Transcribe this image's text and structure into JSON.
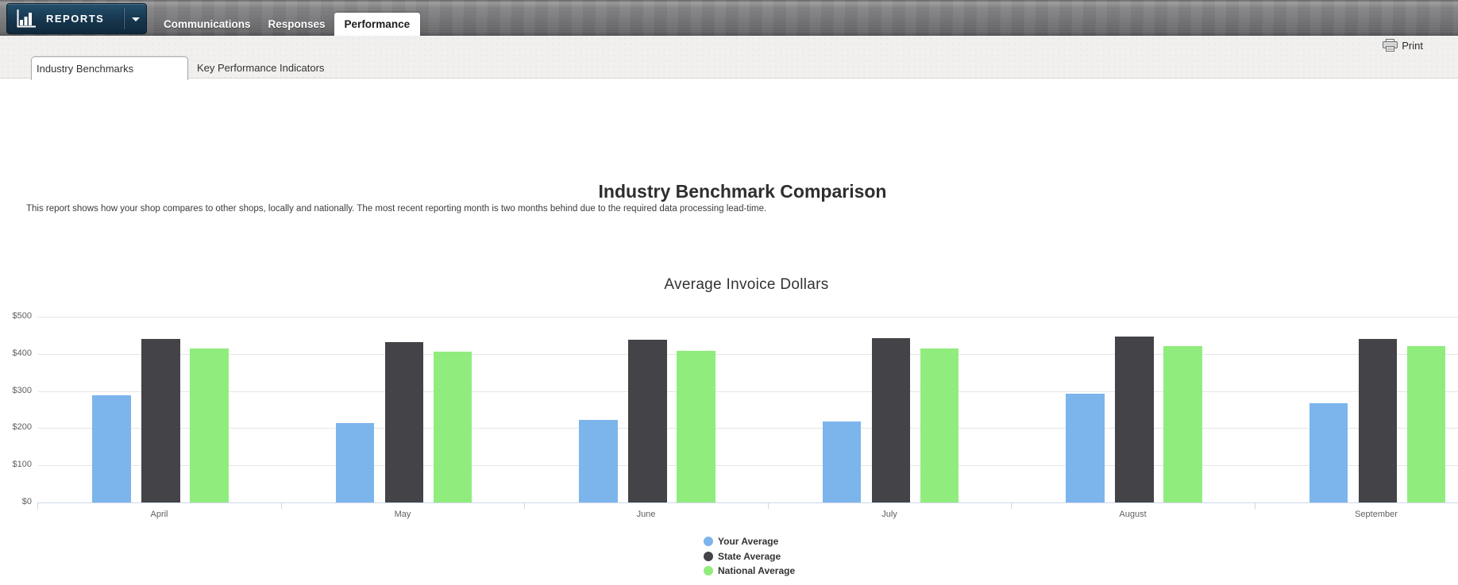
{
  "header": {
    "logo_label": "REPORTS",
    "tabs": [
      {
        "label": "Communications",
        "active": false
      },
      {
        "label": "Responses",
        "active": false
      },
      {
        "label": "Performance",
        "active": true
      }
    ]
  },
  "toolbar": {
    "print_label": "Print"
  },
  "subtabs": [
    {
      "label": "Industry Benchmarks",
      "active": true
    },
    {
      "label": "Key Performance Indicators",
      "active": false
    }
  ],
  "page": {
    "title": "Industry Benchmark Comparison",
    "description": "This report shows how your shop compares to other shops, locally and nationally. The most recent reporting month is two months behind due to the required data processing lead-time."
  },
  "chart_data": {
    "type": "bar",
    "title": "Average Invoice Dollars",
    "categories": [
      "April",
      "May",
      "June",
      "July",
      "August",
      "September"
    ],
    "series": [
      {
        "name": "Your Average",
        "color": "#7cb5ec",
        "values": [
          288,
          213,
          222,
          219,
          293,
          268
        ]
      },
      {
        "name": "State Average",
        "color": "#434348",
        "values": [
          441,
          432,
          438,
          442,
          447,
          441
        ]
      },
      {
        "name": "National Average",
        "color": "#90ed7d",
        "values": [
          415,
          407,
          409,
          414,
          420,
          421
        ]
      }
    ],
    "ylabel": "",
    "xlabel": "",
    "ylim": [
      0,
      500
    ],
    "ytick_labels": [
      "$500",
      "$400",
      "$300",
      "$200",
      "$100",
      "$0"
    ],
    "grid": true,
    "legend_position": "bottom"
  },
  "colors": {
    "logo_navy": "#16364d",
    "series_blue": "#7cb5ec",
    "series_dark": "#434348",
    "series_green": "#90ed7d",
    "grid_gray": "#e6e6e6",
    "axis_blue": "#ccd6eb",
    "axis_text": "#606060"
  }
}
